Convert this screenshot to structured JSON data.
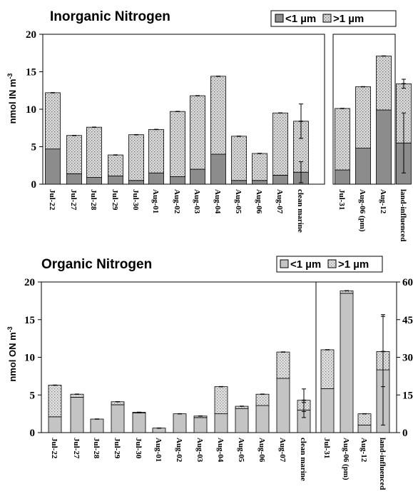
{
  "chart_data": [
    {
      "type": "bar",
      "stacked": true,
      "title": "Inorganic Nitrogen",
      "ylabel": "nmol IN m",
      "ylabel_sup": "-3",
      "ylim": [
        0,
        20
      ],
      "yticks": [
        "0",
        "5",
        "10",
        "15",
        "20"
      ],
      "legend": "top-right",
      "grid": false,
      "colors": {
        "lt1": "#8c8c8c",
        "gt1": "#d9d9d9"
      },
      "series": [
        {
          "name": "<1 µm",
          "key": "lt1"
        },
        {
          "name": ">1 µm",
          "key": "gt1"
        }
      ],
      "groups": [
        {
          "categories": [
            "Jul-22",
            "Jul-27",
            "Jul-28",
            "Jul-29",
            "Jul-30",
            "Aug-01",
            "Aug-02",
            "Aug-03",
            "Aug-04",
            "Aug-05",
            "Aug-06",
            "Aug-07",
            "clean marine"
          ],
          "lt1": [
            4.7,
            1.4,
            0.9,
            1.1,
            0.5,
            1.5,
            1.0,
            2.0,
            4.0,
            0.5,
            0.5,
            1.2,
            1.6
          ],
          "gt1": [
            7.5,
            5.1,
            6.7,
            2.8,
            6.1,
            5.8,
            8.7,
            9.8,
            10.4,
            5.9,
            3.6,
            8.3,
            6.8
          ],
          "err_lt1": [
            null,
            null,
            null,
            null,
            null,
            null,
            null,
            null,
            null,
            null,
            null,
            null,
            1.4
          ],
          "err_gt1": [
            null,
            null,
            null,
            null,
            null,
            null,
            null,
            null,
            null,
            null,
            null,
            null,
            2.3
          ]
        },
        {
          "categories": [
            "Jul-31",
            "Aug-06 (pm)",
            "Aug-12",
            "land-influenced"
          ],
          "lt1": [
            1.9,
            4.8,
            9.9,
            5.5
          ],
          "gt1": [
            8.2,
            8.2,
            7.2,
            7.9
          ],
          "err_lt1": [
            null,
            null,
            null,
            4.0
          ],
          "err_gt1": [
            null,
            null,
            null,
            0.6
          ]
        }
      ]
    },
    {
      "type": "bar",
      "stacked": true,
      "title": "Organic Nitrogen",
      "ylabel": "nmol ON m",
      "ylabel_sup": "-3",
      "ylim": [
        0,
        20
      ],
      "yticks": [
        "0",
        "5",
        "10",
        "15",
        "20"
      ],
      "ylim_right": [
        0,
        60
      ],
      "yticks_right": [
        "0",
        "15",
        "30",
        "45",
        "60"
      ],
      "legend": "top-right",
      "grid": false,
      "colors": {
        "lt1": "#c4c4c4",
        "gt1": "#e0e0e0"
      },
      "series": [
        {
          "name": "<1 µm",
          "key": "lt1"
        },
        {
          "name": ">1 µm",
          "key": "gt1"
        }
      ],
      "groups": [
        {
          "axis": "left",
          "categories": [
            "Jul-22",
            "Jul-27",
            "Jul-28",
            "Jul-29",
            "Jul-30",
            "Aug-01",
            "Aug-02",
            "Aug-03",
            "Aug-04",
            "Aug-05",
            "Aug-06",
            "Aug-07",
            "clean marine"
          ],
          "lt1": [
            2.1,
            4.7,
            1.8,
            3.7,
            2.6,
            0.6,
            2.5,
            2.0,
            2.5,
            3.2,
            3.6,
            7.2,
            3.0
          ],
          "gt1": [
            4.2,
            0.4,
            0.0,
            0.4,
            0.1,
            0.0,
            0.0,
            0.2,
            3.6,
            0.3,
            1.5,
            3.5,
            1.3
          ],
          "err_lt1": [
            null,
            null,
            null,
            null,
            null,
            null,
            null,
            null,
            null,
            null,
            null,
            null,
            1.0
          ],
          "err_gt1": [
            null,
            null,
            null,
            null,
            null,
            null,
            null,
            null,
            null,
            null,
            null,
            null,
            1.5
          ]
        },
        {
          "axis": "right",
          "categories": [
            "Jul-31",
            "Aug-06 (pm)",
            "Aug-12",
            "land-influenced"
          ],
          "lt1": [
            17.5,
            55.5,
            3.0,
            25.0
          ],
          "gt1": [
            15.5,
            1.0,
            4.5,
            7.3
          ],
          "err_lt1": [
            null,
            null,
            null,
            22.0
          ],
          "err_gt1": [
            null,
            null,
            null,
            14.0
          ]
        }
      ]
    }
  ]
}
